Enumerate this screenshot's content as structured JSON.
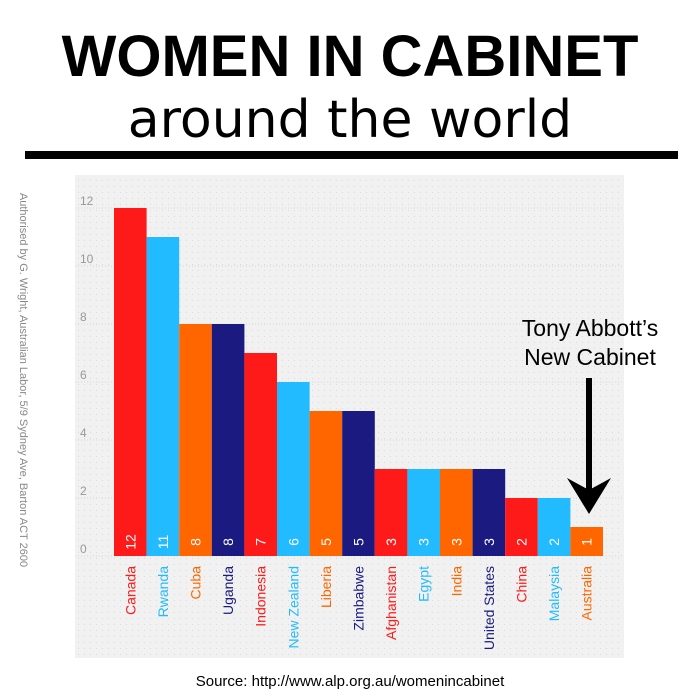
{
  "title": "WOMEN IN CABINET",
  "subtitle": "around the world",
  "side_note": "Authorised by G. Wright, Australian Labor, 5/9 Sydney Ave, Barton ACT 2600",
  "source": "Source: http://www.alp.org.au/womenincabinet",
  "annotation": {
    "line1": "Tony Abbott’s",
    "line2": "New Cabinet"
  },
  "colors": {
    "red": "#ff1a1a",
    "light_blue": "#22bbff",
    "orange": "#ff6600",
    "navy": "#1a1a80"
  },
  "chart_data": {
    "type": "bar",
    "title": "WOMEN IN CABINET",
    "subtitle": "around the world",
    "xlabel": "",
    "ylabel": "",
    "ylim": [
      0,
      13
    ],
    "yticks": [
      0,
      2,
      4,
      6,
      8,
      10,
      12
    ],
    "grid": true,
    "categories": [
      "Canada",
      "Rwanda",
      "Cuba",
      "Uganda",
      "Indonesia",
      "New Zealand",
      "Liberia",
      "Zimbabwe",
      "Afghanistan",
      "Egypt",
      "India",
      "United States",
      "China",
      "Malaysia",
      "Australia"
    ],
    "values": [
      12,
      11,
      8,
      8,
      7,
      6,
      5,
      5,
      3,
      3,
      3,
      3,
      2,
      2,
      1
    ],
    "bar_colors": [
      "#ff1a1a",
      "#22bbff",
      "#ff6600",
      "#1a1a80",
      "#ff1a1a",
      "#22bbff",
      "#ff6600",
      "#1a1a80",
      "#ff1a1a",
      "#22bbff",
      "#ff6600",
      "#1a1a80",
      "#ff1a1a",
      "#22bbff",
      "#ff6600"
    ],
    "annotation_target": "Australia"
  }
}
